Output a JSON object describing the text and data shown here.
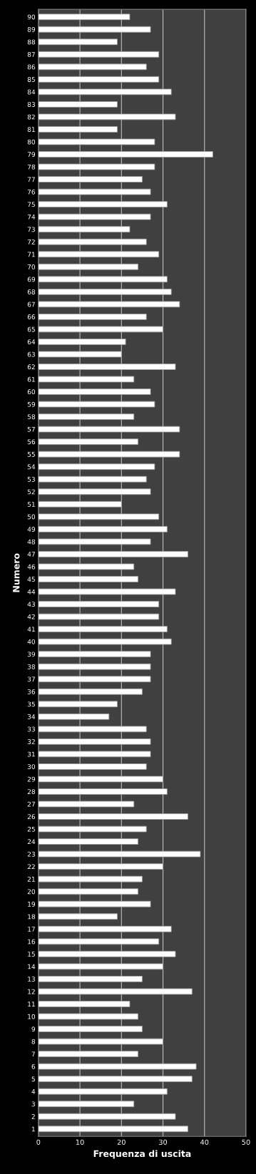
{
  "chart_data": {
    "type": "bar",
    "orientation": "horizontal",
    "xlabel": "Frequenza di uscita",
    "ylabel": "Numero",
    "categories": [
      "90",
      "89",
      "88",
      "87",
      "86",
      "85",
      "84",
      "83",
      "82",
      "81",
      "80",
      "79",
      "78",
      "77",
      "76",
      "75",
      "74",
      "73",
      "72",
      "71",
      "70",
      "69",
      "68",
      "67",
      "66",
      "65",
      "64",
      "63",
      "62",
      "61",
      "60",
      "59",
      "58",
      "57",
      "56",
      "55",
      "54",
      "53",
      "52",
      "51",
      "50",
      "49",
      "48",
      "47",
      "46",
      "45",
      "44",
      "43",
      "42",
      "41",
      "40",
      "39",
      "38",
      "37",
      "36",
      "35",
      "34",
      "33",
      "32",
      "31",
      "30",
      "29",
      "28",
      "27",
      "26",
      "25",
      "24",
      "23",
      "22",
      "21",
      "20",
      "19",
      "18",
      "17",
      "16",
      "15",
      "14",
      "13",
      "12",
      "11",
      "10",
      "9",
      "8",
      "7",
      "6",
      "5",
      "4",
      "3",
      "2",
      "1"
    ],
    "values": [
      22,
      27,
      19,
      29,
      26,
      29,
      32,
      19,
      33,
      19,
      28,
      42,
      28,
      25,
      27,
      31,
      27,
      22,
      26,
      29,
      24,
      31,
      32,
      34,
      26,
      30,
      21,
      20,
      33,
      23,
      27,
      28,
      23,
      34,
      24,
      34,
      28,
      26,
      27,
      20,
      29,
      31,
      27,
      36,
      23,
      24,
      33,
      29,
      29,
      31,
      32,
      27,
      27,
      27,
      25,
      19,
      17,
      26,
      27,
      27,
      26,
      30,
      31,
      23,
      36,
      26,
      24,
      39,
      30,
      25,
      24,
      27,
      19,
      32,
      29,
      33,
      30,
      25,
      37,
      22,
      24,
      25,
      30,
      24,
      38,
      37,
      31,
      23,
      33,
      36
    ],
    "color": "#ffffff",
    "xlim": [
      0,
      50
    ],
    "xticks": [
      0,
      10,
      20,
      30,
      40,
      50
    ],
    "grid": "x"
  }
}
